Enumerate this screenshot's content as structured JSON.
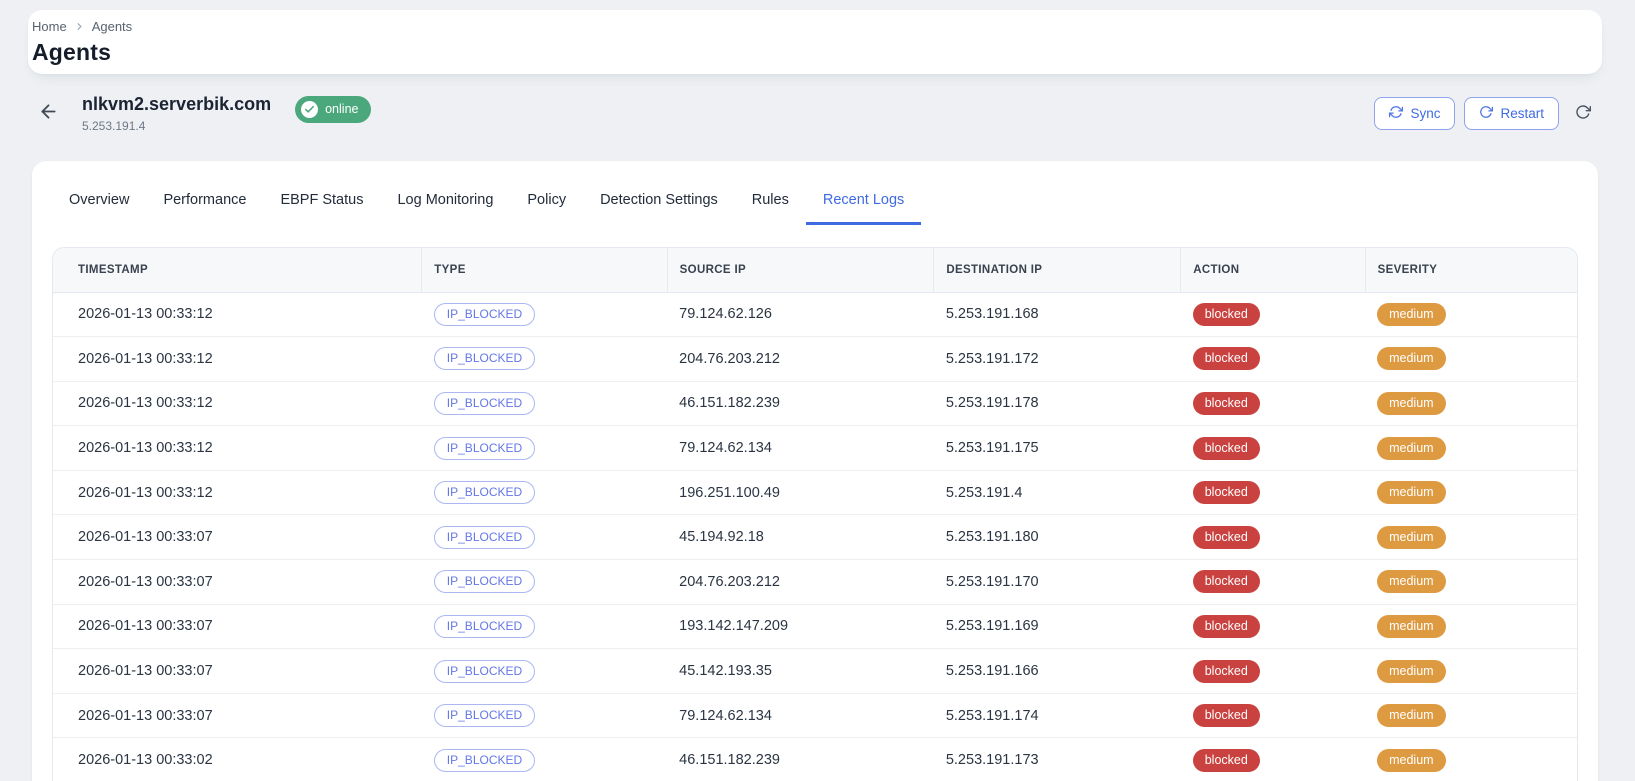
{
  "breadcrumb": {
    "home": "Home",
    "current": "Agents"
  },
  "page_title": "Agents",
  "agent": {
    "name": "nlkvm2.serverbik.com",
    "ip": "5.253.191.4",
    "status": "online"
  },
  "actions": {
    "sync": "Sync",
    "restart": "Restart"
  },
  "tabs": {
    "labels": [
      "Overview",
      "Performance",
      "EBPF Status",
      "Log Monitoring",
      "Policy",
      "Detection Settings",
      "Rules",
      "Recent Logs"
    ],
    "active": "Recent Logs"
  },
  "table": {
    "columns": [
      "TIMESTAMP",
      "TYPE",
      "SOURCE IP",
      "DESTINATION IP",
      "ACTION",
      "SEVERITY"
    ],
    "rows": [
      {
        "timestamp": "2026-01-13 00:33:12",
        "type": "IP_BLOCKED",
        "source_ip": "79.124.62.126",
        "destination_ip": "5.253.191.168",
        "action": "blocked",
        "severity": "medium"
      },
      {
        "timestamp": "2026-01-13 00:33:12",
        "type": "IP_BLOCKED",
        "source_ip": "204.76.203.212",
        "destination_ip": "5.253.191.172",
        "action": "blocked",
        "severity": "medium"
      },
      {
        "timestamp": "2026-01-13 00:33:12",
        "type": "IP_BLOCKED",
        "source_ip": "46.151.182.239",
        "destination_ip": "5.253.191.178",
        "action": "blocked",
        "severity": "medium"
      },
      {
        "timestamp": "2026-01-13 00:33:12",
        "type": "IP_BLOCKED",
        "source_ip": "79.124.62.134",
        "destination_ip": "5.253.191.175",
        "action": "blocked",
        "severity": "medium"
      },
      {
        "timestamp": "2026-01-13 00:33:12",
        "type": "IP_BLOCKED",
        "source_ip": "196.251.100.49",
        "destination_ip": "5.253.191.4",
        "action": "blocked",
        "severity": "medium"
      },
      {
        "timestamp": "2026-01-13 00:33:07",
        "type": "IP_BLOCKED",
        "source_ip": "45.194.92.18",
        "destination_ip": "5.253.191.180",
        "action": "blocked",
        "severity": "medium"
      },
      {
        "timestamp": "2026-01-13 00:33:07",
        "type": "IP_BLOCKED",
        "source_ip": "204.76.203.212",
        "destination_ip": "5.253.191.170",
        "action": "blocked",
        "severity": "medium"
      },
      {
        "timestamp": "2026-01-13 00:33:07",
        "type": "IP_BLOCKED",
        "source_ip": "193.142.147.209",
        "destination_ip": "5.253.191.169",
        "action": "blocked",
        "severity": "medium"
      },
      {
        "timestamp": "2026-01-13 00:33:07",
        "type": "IP_BLOCKED",
        "source_ip": "45.142.193.35",
        "destination_ip": "5.253.191.166",
        "action": "blocked",
        "severity": "medium"
      },
      {
        "timestamp": "2026-01-13 00:33:07",
        "type": "IP_BLOCKED",
        "source_ip": "79.124.62.134",
        "destination_ip": "5.253.191.174",
        "action": "blocked",
        "severity": "medium"
      },
      {
        "timestamp": "2026-01-13 00:33:02",
        "type": "IP_BLOCKED",
        "source_ip": "46.151.182.239",
        "destination_ip": "5.253.191.173",
        "action": "blocked",
        "severity": "medium"
      }
    ]
  },
  "colors": {
    "page-bg": "#eef0f3",
    "accent-blue": "#3f6be2",
    "online-green": "#4ba87c",
    "blocked-red": "#c9423f",
    "medium-orange": "#de9a41"
  }
}
